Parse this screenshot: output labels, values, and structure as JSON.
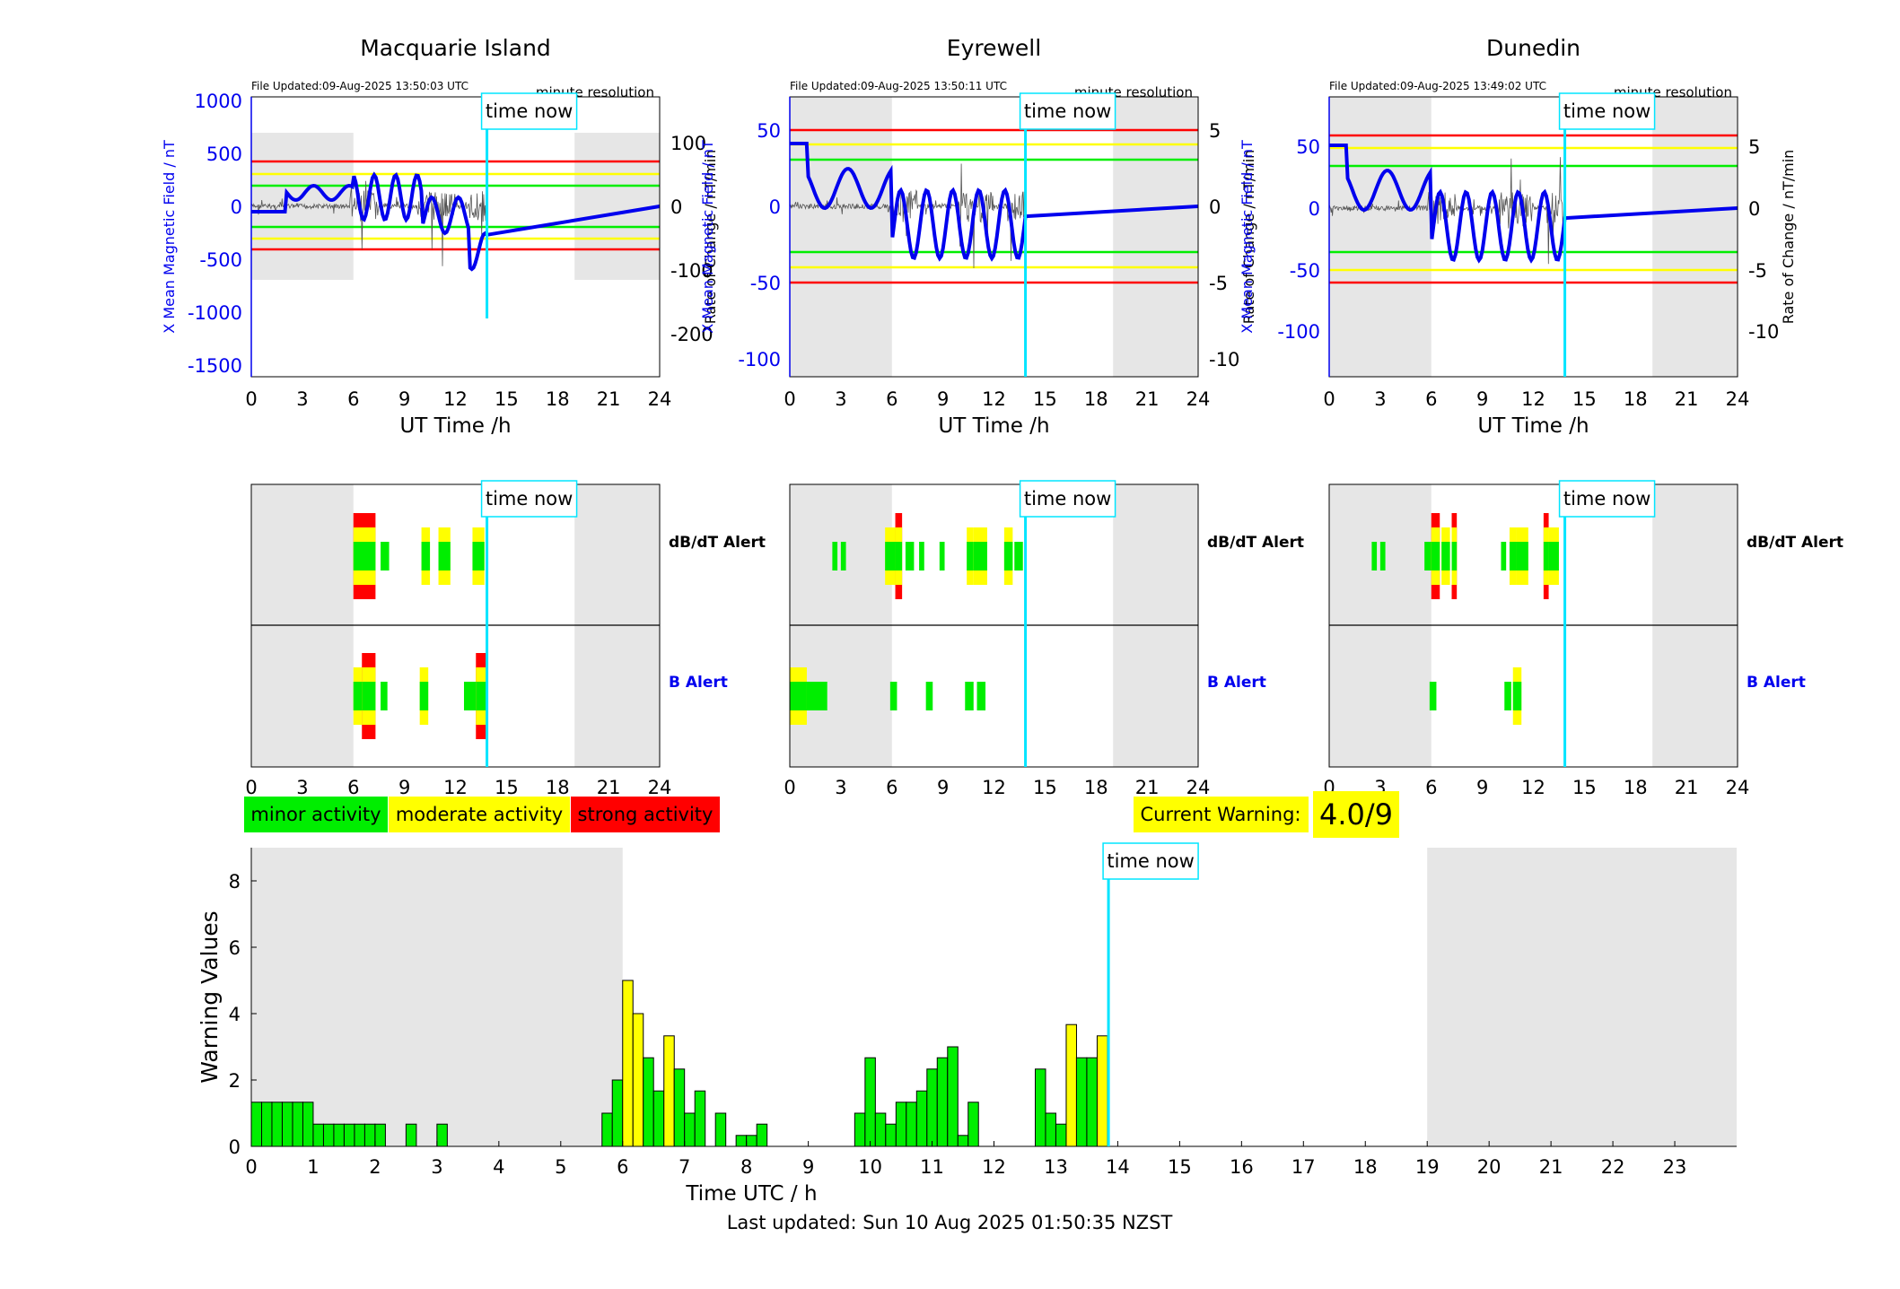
{
  "hours": [
    0,
    3,
    6,
    9,
    12,
    15,
    18,
    21,
    24
  ],
  "time_now_label": "time now",
  "time_now_hour": 13.85,
  "night_shade_color": "#e6e6e6",
  "stations": [
    {
      "name": "Macquarie Island",
      "file_updated": "File Updated:09-Aug-2025 13:50:03 UTC",
      "resolution": "minute resolution",
      "left_axis_label": "X Mean Magnetic Field / nT",
      "right_axis_label": "Rate of Change / nT/min",
      "left_ticks": [
        1000,
        500,
        0,
        -500,
        -1000,
        -1500
      ],
      "right_ticks": [
        100,
        0,
        -100,
        -200
      ],
      "xlabel": "UT Time /h",
      "night_before_hour": 6,
      "night_after_hour": 19,
      "dbdt_blocks": [
        [
          6,
          7.3,
          3
        ],
        [
          7.6,
          8.1,
          1
        ],
        [
          10,
          10.5,
          2
        ],
        [
          11,
          11.7,
          2
        ],
        [
          13,
          13.7,
          2
        ]
      ],
      "b_blocks": [
        [
          6,
          6.5,
          2
        ],
        [
          6.5,
          7.3,
          3
        ],
        [
          7.6,
          8,
          1
        ],
        [
          9.9,
          10.4,
          2
        ],
        [
          12.5,
          13.2,
          1
        ],
        [
          13.2,
          13.9,
          3
        ]
      ]
    },
    {
      "name": "Eyrewell",
      "file_updated": "File Updated:09-Aug-2025 13:50:11 UTC",
      "resolution": "minute resolution",
      "left_axis_label": "X Mean Magnetic Field / nT",
      "right_axis_label": "Rate of Change / nT/min",
      "left_ticks": [
        50,
        0,
        -50,
        -100
      ],
      "right_ticks": [
        5,
        0,
        -5,
        -10
      ],
      "xlabel": "UT Time /h",
      "night_before_hour": 6,
      "night_after_hour": 19,
      "dbdt_blocks": [
        [
          2.5,
          2.8,
          1
        ],
        [
          3,
          3.3,
          1
        ],
        [
          5.6,
          6.2,
          2
        ],
        [
          6.2,
          6.6,
          3
        ],
        [
          6.8,
          7.3,
          1
        ],
        [
          7.6,
          7.9,
          1
        ],
        [
          8.8,
          9.1,
          1
        ],
        [
          10.4,
          10.8,
          2
        ],
        [
          10.8,
          11.6,
          2
        ],
        [
          12.6,
          13.1,
          2
        ],
        [
          13.2,
          13.7,
          1
        ]
      ],
      "b_blocks": [
        [
          0,
          1,
          2
        ],
        [
          1,
          2.2,
          1
        ],
        [
          5.9,
          6.3,
          1
        ],
        [
          8,
          8.4,
          1
        ],
        [
          10.3,
          10.8,
          1
        ],
        [
          11,
          11.5,
          1
        ]
      ]
    },
    {
      "name": "Dunedin",
      "file_updated": "File Updated:09-Aug-2025 13:49:02 UTC",
      "resolution": "minute resolution",
      "left_axis_label": "X Mean Magnetic Field / nT",
      "right_axis_label": "Rate of Change / nT/min",
      "left_ticks": [
        50,
        0,
        -50,
        -100
      ],
      "right_ticks": [
        5,
        0,
        -5,
        -10
      ],
      "xlabel": "UT Time /h",
      "night_before_hour": 6,
      "night_after_hour": 19,
      "dbdt_blocks": [
        [
          2.5,
          2.8,
          1
        ],
        [
          3,
          3.3,
          1
        ],
        [
          5.6,
          6,
          1
        ],
        [
          6,
          6.5,
          3
        ],
        [
          6.6,
          7.1,
          2
        ],
        [
          7.2,
          7.5,
          3
        ],
        [
          10.1,
          10.4,
          1
        ],
        [
          10.6,
          11,
          2
        ],
        [
          11,
          11.7,
          2
        ],
        [
          12.6,
          12.9,
          3
        ],
        [
          12.9,
          13.5,
          2
        ]
      ],
      "b_blocks": [
        [
          5.9,
          6.3,
          1
        ],
        [
          10.3,
          10.7,
          1
        ],
        [
          10.8,
          11.3,
          2
        ]
      ]
    }
  ],
  "alerts": {
    "dbdt_label": "dB/dT Alert",
    "b_label": "B Alert"
  },
  "legend": {
    "minor": "minor activity",
    "moderate": "moderate activity",
    "strong": "strong activity",
    "minor_color": "#00ee00",
    "moderate_color": "#ffff00",
    "strong_color": "#ff0000"
  },
  "current_warning": {
    "label": "Current Warning:",
    "value": "4.0/9"
  },
  "chart_data": {
    "type": "bar",
    "xlabel": "Time UTC / h",
    "ylabel": "Warning Values",
    "xlim": [
      0,
      24
    ],
    "ylim": [
      0,
      9
    ],
    "x_ticks": [
      0,
      1,
      2,
      3,
      4,
      5,
      6,
      7,
      8,
      9,
      10,
      11,
      12,
      13,
      14,
      15,
      16,
      17,
      18,
      19,
      20,
      21,
      22,
      23
    ],
    "y_ticks": [
      0,
      2,
      4,
      6,
      8
    ],
    "bar_width_h": 0.1667,
    "bars": [
      {
        "x": 0.0,
        "v": 1.33,
        "level": "minor"
      },
      {
        "x": 0.167,
        "v": 1.33,
        "level": "minor"
      },
      {
        "x": 0.333,
        "v": 1.33,
        "level": "minor"
      },
      {
        "x": 0.5,
        "v": 1.33,
        "level": "minor"
      },
      {
        "x": 0.667,
        "v": 1.33,
        "level": "minor"
      },
      {
        "x": 0.833,
        "v": 1.33,
        "level": "minor"
      },
      {
        "x": 1.0,
        "v": 0.67,
        "level": "minor"
      },
      {
        "x": 1.167,
        "v": 0.67,
        "level": "minor"
      },
      {
        "x": 1.333,
        "v": 0.67,
        "level": "minor"
      },
      {
        "x": 1.5,
        "v": 0.67,
        "level": "minor"
      },
      {
        "x": 1.667,
        "v": 0.67,
        "level": "minor"
      },
      {
        "x": 1.833,
        "v": 0.67,
        "level": "minor"
      },
      {
        "x": 2.0,
        "v": 0.67,
        "level": "minor"
      },
      {
        "x": 2.5,
        "v": 0.67,
        "level": "minor"
      },
      {
        "x": 3.0,
        "v": 0.67,
        "level": "minor"
      },
      {
        "x": 5.667,
        "v": 1.0,
        "level": "minor"
      },
      {
        "x": 5.833,
        "v": 2.0,
        "level": "minor"
      },
      {
        "x": 6.0,
        "v": 5.0,
        "level": "moderate"
      },
      {
        "x": 6.167,
        "v": 4.0,
        "level": "moderate"
      },
      {
        "x": 6.333,
        "v": 2.67,
        "level": "minor"
      },
      {
        "x": 6.5,
        "v": 1.67,
        "level": "minor"
      },
      {
        "x": 6.667,
        "v": 3.33,
        "level": "moderate"
      },
      {
        "x": 6.833,
        "v": 2.33,
        "level": "minor"
      },
      {
        "x": 7.0,
        "v": 1.0,
        "level": "minor"
      },
      {
        "x": 7.167,
        "v": 1.67,
        "level": "minor"
      },
      {
        "x": 7.5,
        "v": 1.0,
        "level": "minor"
      },
      {
        "x": 7.833,
        "v": 0.33,
        "level": "minor"
      },
      {
        "x": 8.0,
        "v": 0.33,
        "level": "minor"
      },
      {
        "x": 8.167,
        "v": 0.67,
        "level": "minor"
      },
      {
        "x": 9.75,
        "v": 1.0,
        "level": "minor"
      },
      {
        "x": 9.917,
        "v": 2.67,
        "level": "minor"
      },
      {
        "x": 10.083,
        "v": 1.0,
        "level": "minor"
      },
      {
        "x": 10.25,
        "v": 0.67,
        "level": "minor"
      },
      {
        "x": 10.417,
        "v": 1.33,
        "level": "minor"
      },
      {
        "x": 10.583,
        "v": 1.33,
        "level": "minor"
      },
      {
        "x": 10.75,
        "v": 1.67,
        "level": "minor"
      },
      {
        "x": 10.917,
        "v": 2.33,
        "level": "minor"
      },
      {
        "x": 11.083,
        "v": 2.67,
        "level": "minor"
      },
      {
        "x": 11.25,
        "v": 3.0,
        "level": "minor"
      },
      {
        "x": 11.417,
        "v": 0.33,
        "level": "minor"
      },
      {
        "x": 11.583,
        "v": 1.33,
        "level": "minor"
      },
      {
        "x": 12.667,
        "v": 2.33,
        "level": "minor"
      },
      {
        "x": 12.833,
        "v": 1.0,
        "level": "minor"
      },
      {
        "x": 13.0,
        "v": 0.67,
        "level": "minor"
      },
      {
        "x": 13.167,
        "v": 3.67,
        "level": "moderate"
      },
      {
        "x": 13.333,
        "v": 2.67,
        "level": "minor"
      },
      {
        "x": 13.5,
        "v": 2.67,
        "level": "minor"
      },
      {
        "x": 13.667,
        "v": 3.33,
        "level": "moderate"
      }
    ],
    "night_before_hour": 6,
    "night_after_hour": 19
  },
  "footer": "Last updated: Sun 10 Aug 2025 01:50:35 NZST"
}
